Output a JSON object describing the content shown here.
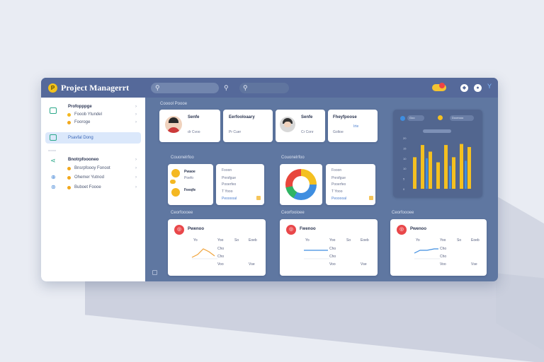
{
  "app": {
    "title": "Project Managerrt",
    "logo_glyph": "P"
  },
  "topbar": {
    "icons": [
      "search-icon",
      "search-icon",
      "bell-icon",
      "info-icon",
      "help-icon",
      "notification-icon"
    ]
  },
  "sidebar": {
    "group1": {
      "label": "Profopppge"
    },
    "items1": [
      {
        "label": "Fooob Ytundel"
      },
      {
        "label": "Fooroge"
      }
    ],
    "active": {
      "label": "Psavfal Dong"
    },
    "divider_label": "ooooo",
    "group2": {
      "label": "Bnotrpfoooneo"
    },
    "items2": [
      {
        "label": "Bnsrpfoooy Fonoot"
      },
      {
        "label": "Ohemer Yutnod"
      },
      {
        "label": "Buboet Foooe"
      }
    ]
  },
  "main": {
    "section1_title": "Cooool Poooe",
    "people": [
      {
        "name": "Senfe",
        "line1": "dr   Cvoo"
      },
      {
        "name": "Eerfooloaary",
        "line1": "Pr   Cuer"
      },
      {
        "name": "Senfe",
        "line1": "Cr   Conr"
      },
      {
        "name": "Fheyfpoose",
        "line1": "Irte",
        "line2": "Goltoe"
      }
    ],
    "section2_title": "Couonelrfoo",
    "section3_title": "Couonelrfoo",
    "left_card": {
      "rows": [
        "Pwaoe",
        "Poefo",
        "Feeqfe"
      ],
      "right_lines": [
        "Fooon",
        "Pnrsfgue",
        "Pooerfeo",
        "T Yooo"
      ],
      "link": "Peooooal"
    },
    "donut_card": {
      "right_lines": [
        "Fooon",
        "Pnrsfgue",
        "Pooerfeo",
        "T Yooo"
      ],
      "link": "Peooooal"
    },
    "bottom_titles": [
      "Ceorfoooee",
      "Ceorfooioee",
      "Ceorfoooee"
    ],
    "bottom_cards": [
      {
        "title": "Pwenoo",
        "header": [
          "Yo",
          "Yoo",
          "So",
          "Eoeb"
        ],
        "col_vals": [
          "Cho",
          "Cho",
          "Voo",
          "Vse"
        ]
      },
      {
        "title": "Fwenoo",
        "header": [
          "Yo",
          "Yoo",
          "So",
          "Eoeb"
        ],
        "col_vals": [
          "Cho",
          "Cho",
          "Voo",
          "Vse"
        ]
      },
      {
        "title": "Pwenoo",
        "header": [
          "Yo",
          "Yoo",
          "So",
          "Eoeb"
        ],
        "col_vals": [
          "Cho",
          "Cho",
          "Voo",
          "Vse"
        ]
      }
    ]
  },
  "chart_data": {
    "type": "bar",
    "title": "",
    "legend": [
      "Goo",
      "Dooeooo"
    ],
    "categories": [
      "1",
      "2",
      "3",
      "4",
      "5",
      "6",
      "7",
      "8"
    ],
    "series": [
      {
        "name": "Goo",
        "color": "#f4c020",
        "values": [
          0.62,
          0.86,
          0.73,
          0.52,
          0.86,
          0.62,
          0.88,
          0.82
        ]
      },
      {
        "name": "Dooeooo",
        "color": "#3f8ee0",
        "values": [
          0.0,
          0.0,
          0.6,
          0.0,
          0.0,
          0.45,
          0.0,
          0.55
        ]
      }
    ],
    "yticks": [
      "20",
      "15",
      "10",
      "10",
      "5",
      "0"
    ],
    "ylim": [
      0,
      1
    ]
  },
  "colors": {
    "accent": "#f4c020",
    "blue": "#3f8ee0",
    "red": "#e8463c",
    "panel": "#5f77a1"
  }
}
